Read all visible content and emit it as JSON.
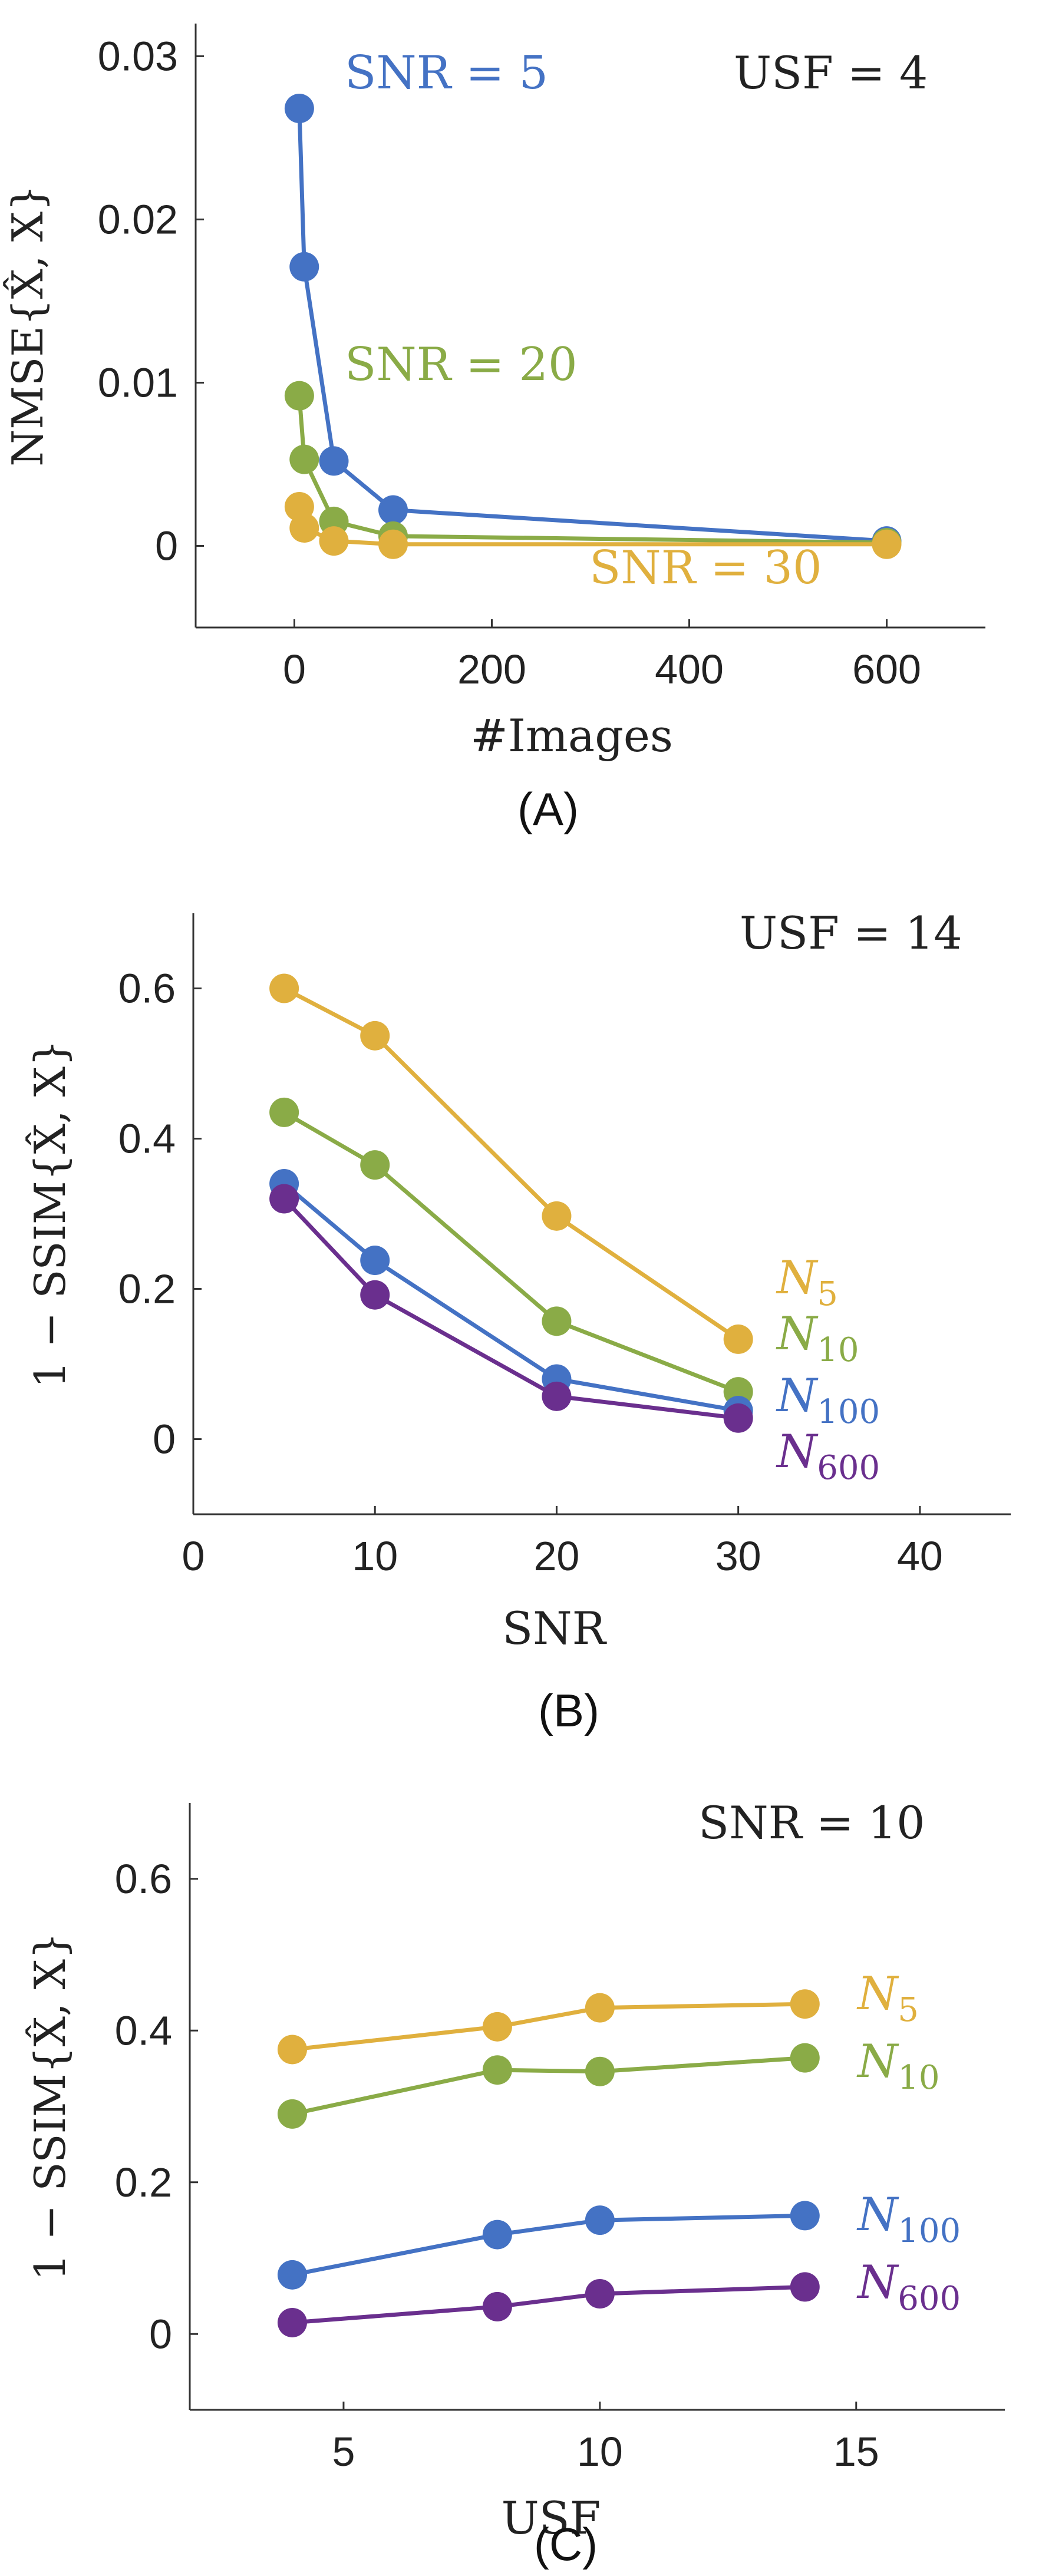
{
  "colors": {
    "blue": "#4472C4",
    "green": "#8AAB47",
    "yellow": "#E0B03E",
    "purple": "#6A2F8E"
  },
  "chart_data": [
    {
      "type": "line",
      "panel_label": "(A)",
      "xlabel": "#Images",
      "ylabel": "NMSE{X̂, X}",
      "xlim": [
        -100,
        700
      ],
      "ylim": [
        -0.005,
        0.032
      ],
      "xticks": [
        0,
        200,
        400,
        600
      ],
      "xtick_labels": [
        "0",
        "200",
        "400",
        "600"
      ],
      "yticks": [
        0,
        0.01,
        0.02,
        0.03
      ],
      "ytick_labels": [
        "0",
        "0.01",
        "0.02",
        "0.03"
      ],
      "annotation": "USF = 4",
      "series": [
        {
          "name": "SNR = 5",
          "label_main": "SNR = 5",
          "label_sub": "",
          "color": "blue",
          "x": [
            5,
            10,
            40,
            100,
            600
          ],
          "y": [
            0.0268,
            0.0171,
            0.0052,
            0.0022,
            0.0003
          ]
        },
        {
          "name": "SNR = 20",
          "label_main": "SNR = 20",
          "label_sub": "",
          "color": "green",
          "x": [
            5,
            10,
            40,
            100,
            600
          ],
          "y": [
            0.0092,
            0.0053,
            0.0015,
            0.0006,
            0.0002
          ]
        },
        {
          "name": "SNR = 30",
          "label_main": "SNR = 30",
          "label_sub": "",
          "color": "yellow",
          "x": [
            5,
            10,
            40,
            100,
            600
          ],
          "y": [
            0.0024,
            0.0011,
            0.0003,
            0.0001,
            0.0001
          ]
        }
      ]
    },
    {
      "type": "line",
      "panel_label": "(B)",
      "xlabel": "SNR",
      "ylabel": "1 − SSIM{X̂, X}",
      "xlim": [
        0,
        45
      ],
      "ylim": [
        -0.1,
        0.7
      ],
      "xticks": [
        0,
        10,
        20,
        30,
        40
      ],
      "xtick_labels": [
        "0",
        "10",
        "20",
        "30",
        "40"
      ],
      "yticks": [
        0,
        0.2,
        0.4,
        0.6
      ],
      "ytick_labels": [
        "0",
        "0.2",
        "0.4",
        "0.6"
      ],
      "annotation": "USF = 14",
      "series": [
        {
          "name": "N5",
          "label_main": "N",
          "label_sub": "5",
          "color": "yellow",
          "x": [
            5,
            10,
            20,
            30
          ],
          "y": [
            0.6,
            0.537,
            0.297,
            0.133
          ]
        },
        {
          "name": "N10",
          "label_main": "N",
          "label_sub": "10",
          "color": "green",
          "x": [
            5,
            10,
            20,
            30
          ],
          "y": [
            0.435,
            0.365,
            0.157,
            0.063
          ]
        },
        {
          "name": "N100",
          "label_main": "N",
          "label_sub": "100",
          "color": "blue",
          "x": [
            5,
            10,
            20,
            30
          ],
          "y": [
            0.34,
            0.238,
            0.08,
            0.038
          ]
        },
        {
          "name": "N600",
          "label_main": "N",
          "label_sub": "600",
          "color": "purple",
          "x": [
            5,
            10,
            20,
            30
          ],
          "y": [
            0.32,
            0.192,
            0.057,
            0.028
          ]
        }
      ]
    },
    {
      "type": "line",
      "panel_label": "(C)",
      "xlabel": "USF",
      "ylabel": "1 − SSIM{X̂, X}",
      "xlim": [
        2,
        17.9
      ],
      "ylim": [
        -0.1,
        0.7
      ],
      "xticks": [
        5,
        10,
        15
      ],
      "xtick_labels": [
        "5",
        "10",
        "15"
      ],
      "yticks": [
        0,
        0.2,
        0.4,
        0.6
      ],
      "ytick_labels": [
        "0",
        "0.2",
        "0.4",
        "0.6"
      ],
      "annotation": "SNR = 10",
      "series": [
        {
          "name": "N5",
          "label_main": "N",
          "label_sub": "5",
          "color": "yellow",
          "x": [
            4,
            8,
            10,
            14
          ],
          "y": [
            0.375,
            0.405,
            0.43,
            0.435
          ]
        },
        {
          "name": "N10",
          "label_main": "N",
          "label_sub": "10",
          "color": "green",
          "x": [
            4,
            8,
            10,
            14
          ],
          "y": [
            0.29,
            0.348,
            0.346,
            0.364
          ]
        },
        {
          "name": "N100",
          "label_main": "N",
          "label_sub": "100",
          "color": "blue",
          "x": [
            4,
            8,
            10,
            14
          ],
          "y": [
            0.078,
            0.131,
            0.15,
            0.156
          ]
        },
        {
          "name": "N600",
          "label_main": "N",
          "label_sub": "600",
          "color": "purple",
          "x": [
            4,
            8,
            10,
            14
          ],
          "y": [
            0.015,
            0.036,
            0.053,
            0.062
          ]
        }
      ]
    }
  ]
}
